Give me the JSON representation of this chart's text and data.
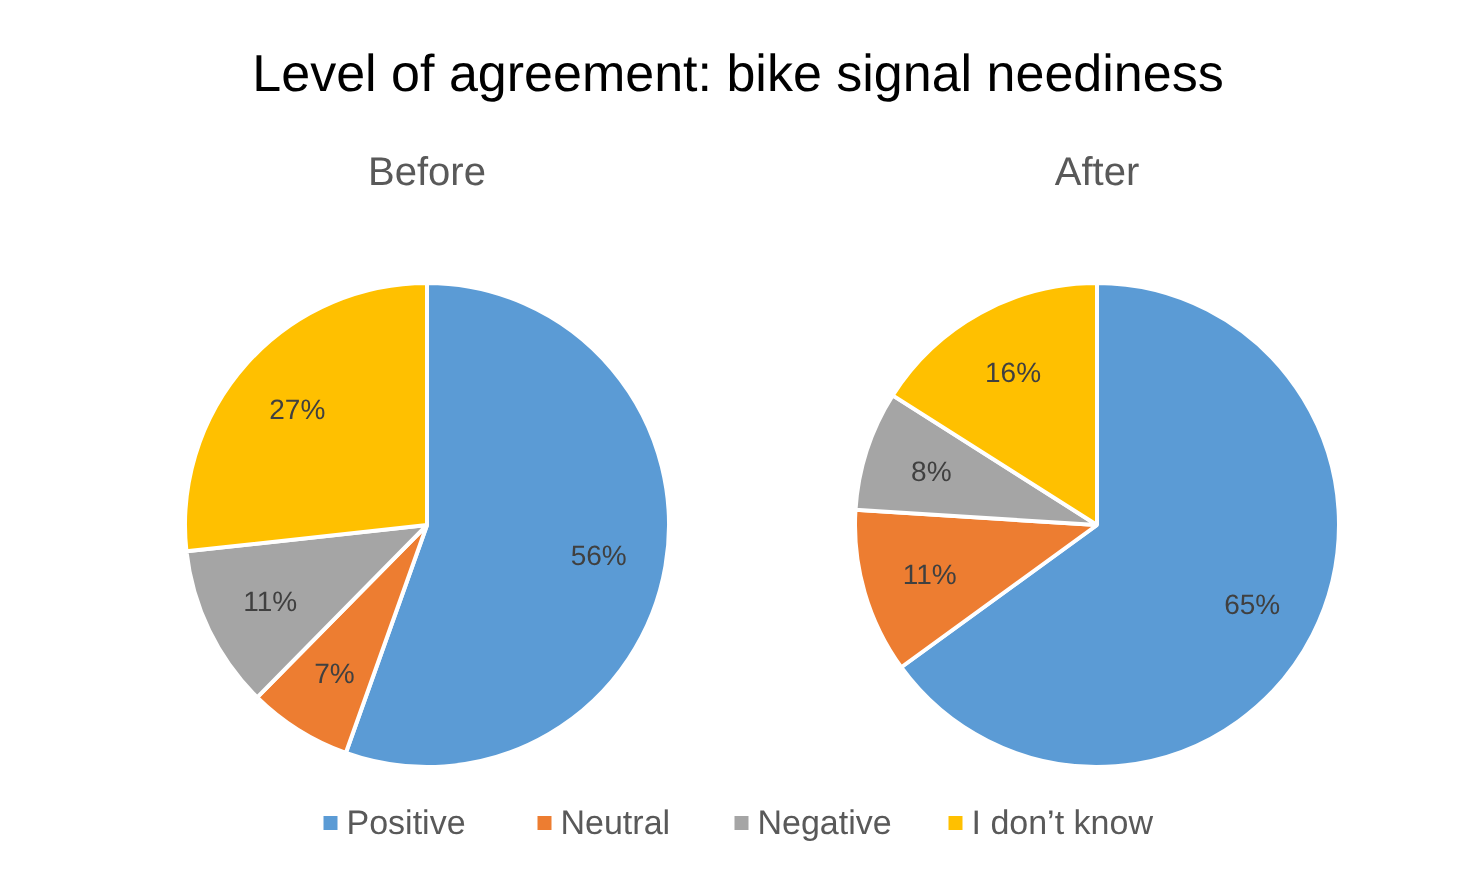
{
  "chart_data": {
    "type": "pie",
    "title": "Level of agreement: bike signal neediness",
    "categories": [
      "Positive",
      "Neutral",
      "Negative",
      "I don’t know"
    ],
    "colors": [
      "#5b9bd5",
      "#ed7d31",
      "#a5a5a5",
      "#ffc000"
    ],
    "series": [
      {
        "name": "Before",
        "values": [
          56,
          7,
          11,
          27
        ],
        "value_labels": [
          "56%",
          "7%",
          "11%",
          "27%"
        ]
      },
      {
        "name": "After",
        "values": [
          65,
          11,
          8,
          16
        ],
        "value_labels": [
          "65%",
          "11%",
          "8%",
          "16%"
        ]
      }
    ],
    "legend": "bottom"
  }
}
